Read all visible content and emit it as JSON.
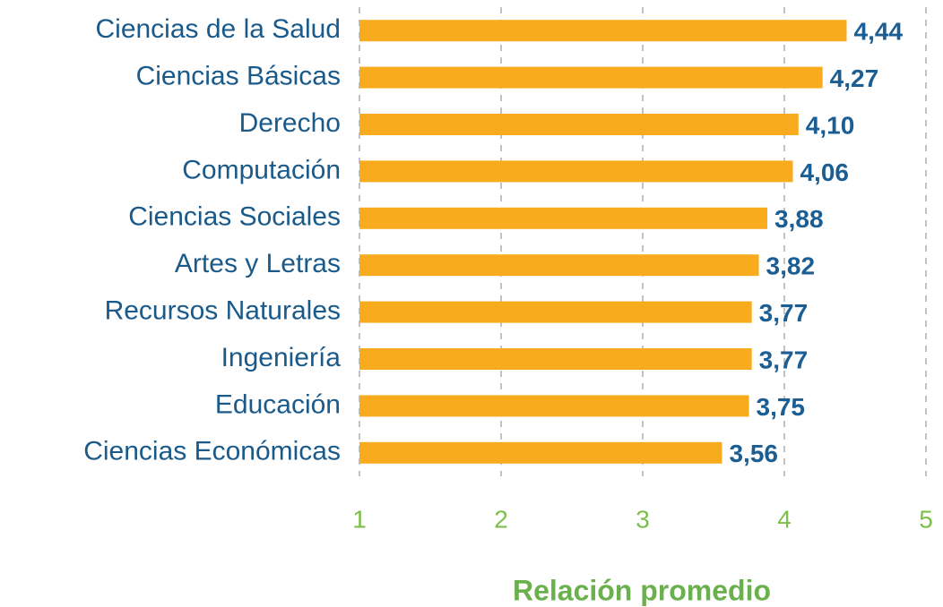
{
  "chart_data": {
    "type": "bar",
    "orientation": "horizontal",
    "x_label": "Relación promedio",
    "categories": [
      "Ciencias de la Salud",
      "Ciencias Básicas",
      "Derecho",
      "Computación",
      "Ciencias Sociales",
      "Artes y Letras",
      "Recursos Naturales",
      "Ingeniería",
      "Educación",
      "Ciencias Económicas"
    ],
    "values": [
      4.44,
      4.27,
      4.1,
      4.06,
      3.88,
      3.82,
      3.77,
      3.77,
      3.75,
      3.56
    ],
    "value_labels": [
      "4,44",
      "4,27",
      "4,10",
      "4,06",
      "3,88",
      "3,82",
      "3,77",
      "3,77",
      "3,75",
      "3,56"
    ],
    "color": "#f9ab1e",
    "xlim": [
      1,
      5
    ],
    "xticks": [
      1,
      2,
      3,
      4,
      5
    ],
    "grid": true
  }
}
